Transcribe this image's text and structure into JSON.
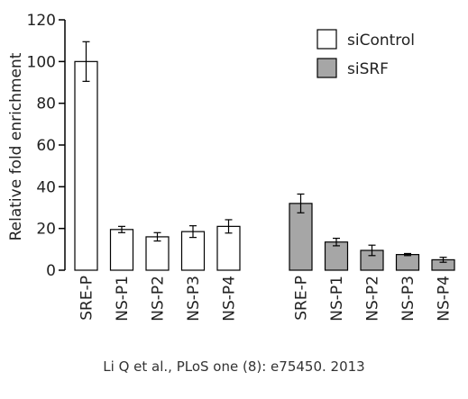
{
  "chart_data": {
    "type": "bar",
    "ylabel": "Relative fold enrichment",
    "ylim": [
      0,
      120
    ],
    "yticks": [
      0,
      20,
      40,
      60,
      80,
      100,
      120
    ],
    "grid": false,
    "legend_position": "top-right",
    "series": [
      {
        "name": "siControl",
        "color": "#ffffff",
        "categories": [
          "SRE-P",
          "NS-P1",
          "NS-P2",
          "NS-P3",
          "NS-P4"
        ],
        "values": [
          100,
          19.5,
          16,
          18.5,
          21
        ],
        "errors": [
          9.5,
          1.5,
          2,
          2.8,
          3.2
        ]
      },
      {
        "name": "siSRF",
        "color": "#a6a6a6",
        "categories": [
          "SRE-P",
          "NS-P1",
          "NS-P2",
          "NS-P3",
          "NS-P4"
        ],
        "values": [
          32,
          13.5,
          9.5,
          7.5,
          5
        ],
        "errors": [
          4.5,
          1.8,
          2.5,
          0.5,
          1.2
        ]
      }
    ]
  },
  "citation": "Li Q et al., PLoS one (8): e75450. 2013"
}
